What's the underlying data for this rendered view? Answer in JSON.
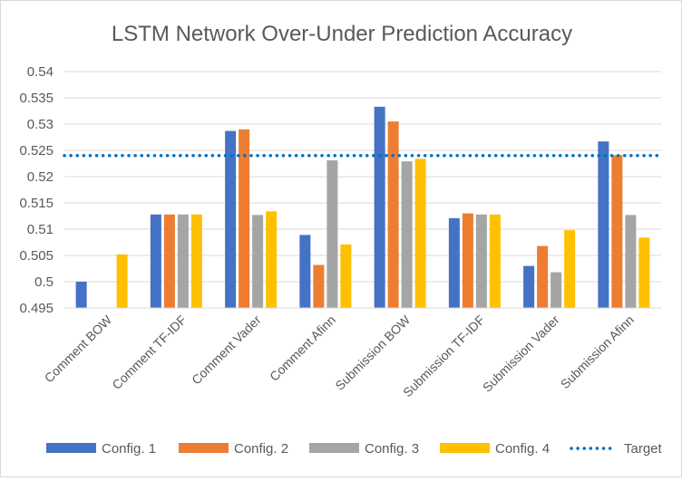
{
  "chart_data": {
    "type": "bar",
    "title": "LSTM Network Over-Under Prediction Accuracy",
    "xlabel": "",
    "ylabel": "",
    "ylim": [
      0.495,
      0.54
    ],
    "y_ticks": [
      "0.495",
      "0.5",
      "0.505",
      "0.51",
      "0.515",
      "0.52",
      "0.525",
      "0.53",
      "0.535",
      "0.54"
    ],
    "y_tick_values": [
      0.495,
      0.5,
      0.505,
      0.51,
      0.515,
      0.52,
      0.525,
      0.53,
      0.535,
      0.54
    ],
    "grid": true,
    "legend_position": "bottom",
    "categories": [
      "Comment BOW",
      "Comment TF-IDF",
      "Comment Vader",
      "Comment Afinn",
      "Submission BOW",
      "Submission TF-IDF",
      "Submission Vader",
      "Submission Afinn"
    ],
    "series": [
      {
        "name": "Config. 1",
        "color": "#4472c4",
        "values": [
          0.5,
          0.5128,
          0.5287,
          0.5089,
          0.5333,
          0.5121,
          0.503,
          0.5267
        ]
      },
      {
        "name": "Config. 2",
        "color": "#ed7d31",
        "values": [
          0.495,
          0.5128,
          0.529,
          0.5032,
          0.5305,
          0.513,
          0.5068,
          0.5241
        ]
      },
      {
        "name": "Config. 3",
        "color": "#a5a5a5",
        "values": [
          0.495,
          0.5128,
          0.5127,
          0.5231,
          0.5229,
          0.5128,
          0.5018,
          0.5127
        ]
      },
      {
        "name": "Config. 4",
        "color": "#ffc000",
        "values": [
          0.5052,
          0.5128,
          0.5134,
          0.5071,
          0.5234,
          0.5128,
          0.5098,
          0.5084
        ]
      }
    ],
    "reference_line": {
      "name": "Target",
      "value": 0.524,
      "color": "#0070c0",
      "style": "dotted"
    }
  }
}
